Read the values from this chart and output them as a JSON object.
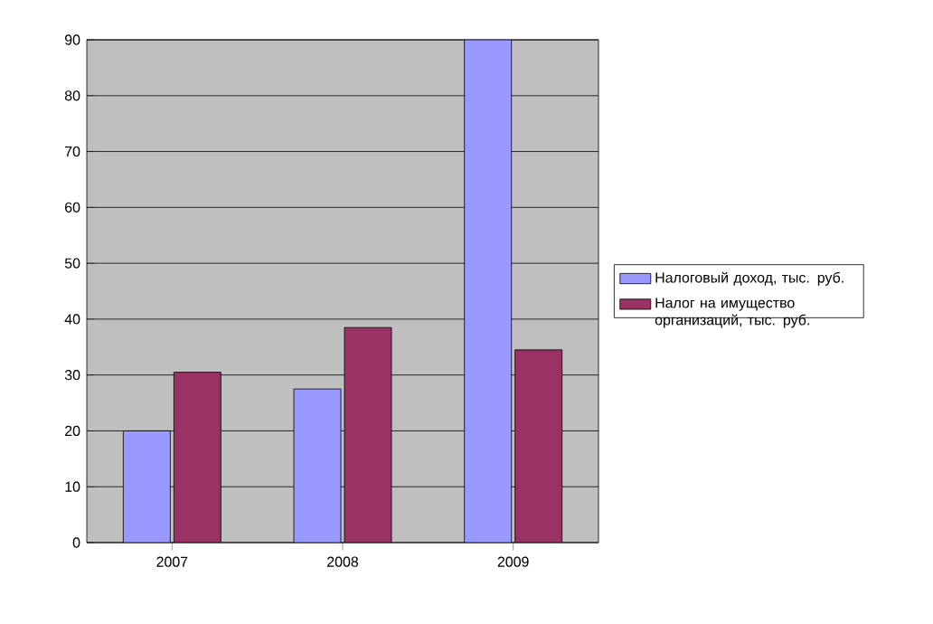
{
  "chart_data": {
    "type": "bar",
    "categories": [
      "2007",
      "2008",
      "2009"
    ],
    "series": [
      {
        "name": "Налоговый доход, тыс. руб.",
        "color": "#9999ff",
        "values": [
          20,
          27.5,
          90
        ]
      },
      {
        "name": "Налог на имущество организаций, тыс. руб.",
        "color": "#993366",
        "values": [
          30.5,
          38.5,
          34.5
        ]
      }
    ],
    "ylim": [
      0,
      90
    ],
    "yticks": [
      0,
      10,
      20,
      30,
      40,
      50,
      60,
      70,
      80,
      90
    ],
    "grid": "y",
    "legend": "right"
  }
}
